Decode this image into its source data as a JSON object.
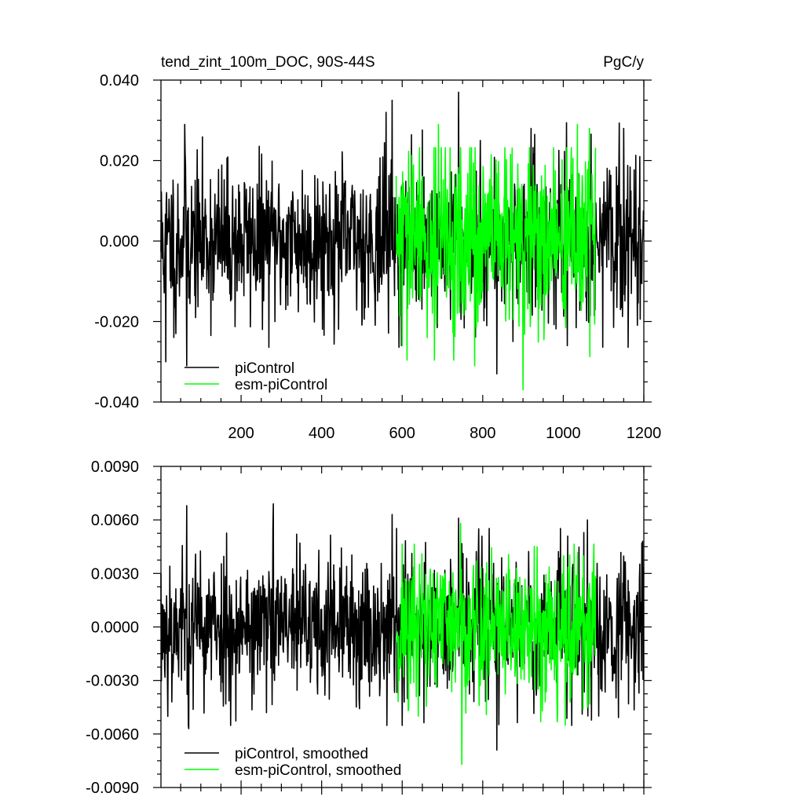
{
  "header": {
    "title": "tend_zint_100m_DOC, 90S-44S",
    "units": "PgC/y"
  },
  "colors": {
    "piControl": "#000000",
    "esm_piControl": "#00ff00",
    "frame": "#000000",
    "background": "#ffffff"
  },
  "chart_data": [
    {
      "type": "line",
      "title": "tend_zint_100m_DOC, 90S-44S",
      "units_label": "PgC/y",
      "xlabel": "",
      "ylabel": "",
      "xlim": [
        1,
        1200
      ],
      "ylim": [
        -0.04,
        0.04
      ],
      "xticks": [
        200,
        400,
        600,
        800,
        1000,
        1200
      ],
      "xtick_labels": [
        "200",
        "400",
        "600",
        "800",
        "1000",
        "1200"
      ],
      "yticks": [
        -0.04,
        -0.02,
        0.0,
        0.02,
        0.04
      ],
      "ytick_labels": [
        "-0.040",
        "-0.020",
        "0.000",
        "0.020",
        "0.040"
      ],
      "grid": false,
      "legend_position": "bottom-left",
      "series": [
        {
          "name": "piControl",
          "color": "#000000",
          "x_start": 1,
          "x_end": 1200,
          "values_summary": "annual noise around 0, amplitude about 0.01, extremes 0.037 (year ~740) and -0.033 (year ~835)",
          "seed": 11,
          "sd": 0.0095,
          "min": -0.033,
          "max": 0.037,
          "spikes": [
            [
              13,
              -0.03
            ],
            [
              38,
              -0.023
            ],
            [
              60,
              0.029
            ],
            [
              65,
              -0.031
            ],
            [
              560,
              0.032
            ],
            [
              575,
              0.035
            ],
            [
              598,
              -0.026
            ],
            [
              740,
              0.037
            ],
            [
              835,
              -0.033
            ],
            [
              920,
              0.028
            ],
            [
              1010,
              -0.026
            ],
            [
              1150,
              0.028
            ],
            [
              1190,
              0.021
            ]
          ]
        },
        {
          "name": "esm-piControl",
          "color": "#00ff00",
          "x_start": 585,
          "x_end": 1080,
          "values_summary": "annual noise around 0, amplitude about 0.012, extremes 0.029 (year ~690) and -0.037 (year ~900)",
          "seed": 29,
          "sd": 0.0115,
          "min": -0.037,
          "max": 0.029,
          "spikes": [
            [
              600,
              -0.026
            ],
            [
              690,
              0.029
            ],
            [
              780,
              -0.031
            ],
            [
              900,
              -0.037
            ],
            [
              1035,
              0.029
            ],
            [
              1065,
              0.028
            ]
          ]
        }
      ]
    },
    {
      "type": "line",
      "title": "",
      "xlabel": "",
      "ylabel": "",
      "xlim": [
        1,
        1200
      ],
      "ylim": [
        -0.009,
        0.009
      ],
      "xticks": [
        200,
        400,
        600,
        800,
        1000,
        1200
      ],
      "xtick_labels": [],
      "yticks": [
        -0.009,
        -0.006,
        -0.003,
        0.0,
        0.003,
        0.006,
        0.009
      ],
      "ytick_labels": [
        "-0.0090",
        "-0.0060",
        "-0.0030",
        "0.0000",
        "0.0030",
        "0.0060",
        "0.0090"
      ],
      "grid": false,
      "legend_position": "bottom-left",
      "series": [
        {
          "name": "piControl, smoothed",
          "color": "#000000",
          "x_start": 1,
          "x_end": 1200,
          "values_summary": "smoothed series around 0, amplitude about 0.002, extremes 0.0069 (year ~280) and -0.0069 (year ~835); quieter after year ~1080",
          "seed": 53,
          "sd": 0.0021,
          "min": -0.0069,
          "max": 0.0069,
          "spikes": [
            [
              65,
              0.0068
            ],
            [
              70,
              -0.0057
            ],
            [
              280,
              0.0069
            ],
            [
              575,
              0.0063
            ],
            [
              740,
              0.0061
            ],
            [
              835,
              -0.0069
            ],
            [
              1060,
              0.006
            ],
            [
              1195,
              0.0047
            ]
          ]
        },
        {
          "name": "esm-piControl, smoothed",
          "color": "#00ff00",
          "x_start": 585,
          "x_end": 1080,
          "values_summary": "smoothed series around 0, amplitude about 0.0022, extremes 0.0058 (year ~745) and -0.0077 (year ~748)",
          "seed": 71,
          "sd": 0.0022,
          "min": -0.0077,
          "max": 0.0058,
          "spikes": [
            [
              745,
              0.0058
            ],
            [
              748,
              -0.0077
            ],
            [
              640,
              -0.005
            ],
            [
              1005,
              -0.0055
            ],
            [
              1060,
              -0.0045
            ]
          ]
        }
      ]
    }
  ]
}
